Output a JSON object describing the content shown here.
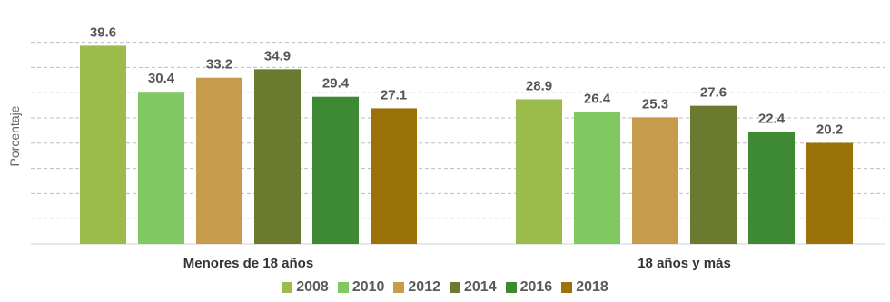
{
  "chart_data": {
    "type": "bar",
    "title": "",
    "xlabel": "",
    "ylabel": "Porcentaje",
    "categories": [
      "Menores de 18 años",
      "18 años y más"
    ],
    "series": [
      {
        "name": "2008",
        "values": [
          39.6,
          28.9
        ],
        "color": "#9bbb4b"
      },
      {
        "name": "2010",
        "values": [
          30.4,
          26.4
        ],
        "color": "#7fc862"
      },
      {
        "name": "2012",
        "values": [
          33.2,
          25.3
        ],
        "color": "#c69b4b"
      },
      {
        "name": "2014",
        "values": [
          34.9,
          27.6
        ],
        "color": "#6a7a2e"
      },
      {
        "name": "2016",
        "values": [
          29.4,
          22.4
        ],
        "color": "#3e8a34"
      },
      {
        "name": "2018",
        "values": [
          27.1,
          20.2
        ],
        "color": "#9b7208"
      }
    ],
    "ylim": [
      0,
      45
    ],
    "grid": true,
    "legend_position": "bottom"
  }
}
